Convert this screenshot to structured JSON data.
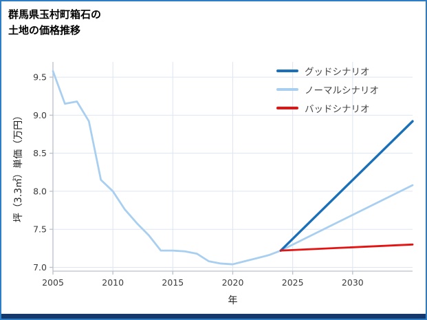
{
  "header": {
    "title_lines": [
      "群馬県玉村町箱石の",
      "土地の価格推移"
    ]
  },
  "chart_data": {
    "type": "line",
    "title": "群馬県玉村町箱石の土地の価格推移",
    "xlabel": "年",
    "ylabel": "坪（3.3㎡）単価（万円）",
    "xlim": [
      2005,
      2035
    ],
    "ylim": [
      6.95,
      9.7
    ],
    "xticks": [
      2005,
      2010,
      2015,
      2020,
      2025,
      2030
    ],
    "yticks": [
      7.0,
      7.5,
      8.0,
      8.5,
      9.0,
      9.5
    ],
    "grid": true,
    "legend_position": "upper right",
    "colors": {
      "grid": "#dde5f2",
      "spine": "#b8c0cb",
      "tick_label": "#3a3a3a",
      "frame_border": "#2e7cc3",
      "footer_bar": "#14386b"
    },
    "series": [
      {
        "name": "グッドシナリオ",
        "color": "#1a70b8",
        "x": [
          2024,
          2035
        ],
        "y": [
          7.22,
          8.92
        ]
      },
      {
        "name": "ノーマルシナリオ",
        "color": "#a9cff0",
        "x": [
          2005,
          2006,
          2007,
          2008,
          2009,
          2010,
          2011,
          2012,
          2013,
          2014,
          2015,
          2016,
          2017,
          2018,
          2019,
          2020,
          2021,
          2022,
          2023,
          2024,
          2035
        ],
        "y": [
          9.58,
          9.15,
          9.18,
          8.92,
          8.15,
          8.0,
          7.76,
          7.58,
          7.42,
          7.22,
          7.22,
          7.21,
          7.18,
          7.08,
          7.05,
          7.04,
          7.08,
          7.12,
          7.16,
          7.22,
          8.08
        ]
      },
      {
        "name": "バッドシナリオ",
        "color": "#e51212",
        "x": [
          2024,
          2035
        ],
        "y": [
          7.22,
          7.3
        ]
      }
    ]
  }
}
